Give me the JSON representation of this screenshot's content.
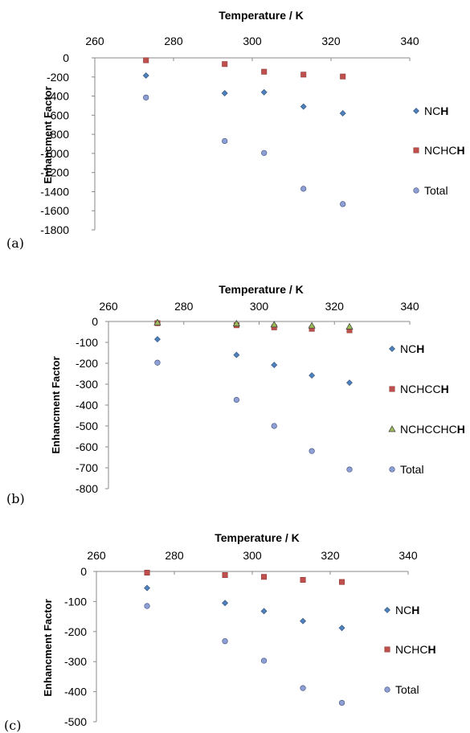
{
  "chart_data": [
    {
      "type": "scatter",
      "panel_label": "(a)",
      "xlabel": "Temperature / K",
      "ylabel": "Enhancment Factor",
      "xlim": [
        260,
        340
      ],
      "ylim": [
        -1800,
        0
      ],
      "x_ticks": [
        "260",
        "280",
        "300",
        "320",
        "340"
      ],
      "y_ticks": [
        "0",
        "-200",
        "-400",
        "-600",
        "-800",
        "-1000",
        "-1200",
        "-1400",
        "-1600",
        "-1800"
      ],
      "legend_position": "right",
      "series": [
        {
          "name": [
            "NC",
            "H"
          ],
          "marker": "diamond",
          "color": "#4f81bd",
          "x": [
            273,
            293,
            303,
            313,
            323
          ],
          "y": [
            -185,
            -370,
            -360,
            -510,
            -580
          ]
        },
        {
          "name": [
            "NCHC",
            "H"
          ],
          "marker": "square",
          "color": "#c0504d",
          "x": [
            273,
            293,
            303,
            313,
            323
          ],
          "y": [
            -25,
            -65,
            -145,
            -175,
            -195
          ]
        },
        {
          "name": [
            "Total",
            ""
          ],
          "marker": "circle",
          "color": "#8e9fd6",
          "x": [
            273,
            293,
            303,
            313,
            323
          ],
          "y": [
            -415,
            -870,
            -995,
            -1370,
            -1530
          ]
        }
      ]
    },
    {
      "type": "scatter",
      "panel_label": "(b)",
      "xlabel": "Temperature / K",
      "ylabel": "Enhancment Factor",
      "xlim": [
        260,
        340
      ],
      "ylim": [
        -800,
        0
      ],
      "x_ticks": [
        "260",
        "280",
        "300",
        "320",
        "340"
      ],
      "y_ticks": [
        "0",
        "-100",
        "-200",
        "-300",
        "-400",
        "-500",
        "-600",
        "-700",
        "-800"
      ],
      "legend_position": "right",
      "series": [
        {
          "name": [
            "NC",
            "H"
          ],
          "marker": "diamond",
          "color": "#4f81bd",
          "x": [
            273,
            294,
            304,
            314,
            324
          ],
          "y": [
            -85,
            -160,
            -208,
            -258,
            -293
          ]
        },
        {
          "name": [
            "NCHCC",
            "H"
          ],
          "marker": "square",
          "color": "#c0504d",
          "x": [
            273,
            294,
            304,
            314,
            324
          ],
          "y": [
            -8,
            -18,
            -28,
            -35,
            -42
          ]
        },
        {
          "name": [
            "NCHCCHC",
            "H"
          ],
          "marker": "triangle",
          "color": "#9bbb59",
          "x": [
            273,
            294,
            304,
            314,
            324
          ],
          "y": [
            -5,
            -10,
            -15,
            -20,
            -25
          ]
        },
        {
          "name": [
            "Total",
            ""
          ],
          "marker": "circle",
          "color": "#8e9fd6",
          "x": [
            273,
            294,
            304,
            314,
            324
          ],
          "y": [
            -197,
            -375,
            -500,
            -620,
            -708
          ]
        }
      ]
    },
    {
      "type": "scatter",
      "panel_label": "(c)",
      "xlabel": "Temperature / K",
      "ylabel": "Enhancment Factor",
      "xlim": [
        260,
        340
      ],
      "ylim": [
        -500,
        0
      ],
      "x_ticks": [
        "260",
        "280",
        "300",
        "320",
        "340"
      ],
      "y_ticks": [
        "0",
        "-100",
        "-200",
        "-300",
        "-400",
        "-500"
      ],
      "legend_position": "right",
      "series": [
        {
          "name": [
            "NC",
            "H"
          ],
          "marker": "diamond",
          "color": "#4f81bd",
          "x": [
            273,
            293,
            303,
            313,
            323
          ],
          "y": [
            -55,
            -105,
            -132,
            -165,
            -188
          ]
        },
        {
          "name": [
            "NCHC",
            "H"
          ],
          "marker": "square",
          "color": "#c0504d",
          "x": [
            273,
            293,
            303,
            313,
            323
          ],
          "y": [
            -4,
            -12,
            -18,
            -28,
            -35
          ]
        },
        {
          "name": [
            "Total",
            ""
          ],
          "marker": "circle",
          "color": "#8e9fd6",
          "x": [
            273,
            293,
            303,
            313,
            323
          ],
          "y": [
            -115,
            -232,
            -297,
            -388,
            -437
          ]
        }
      ]
    }
  ]
}
